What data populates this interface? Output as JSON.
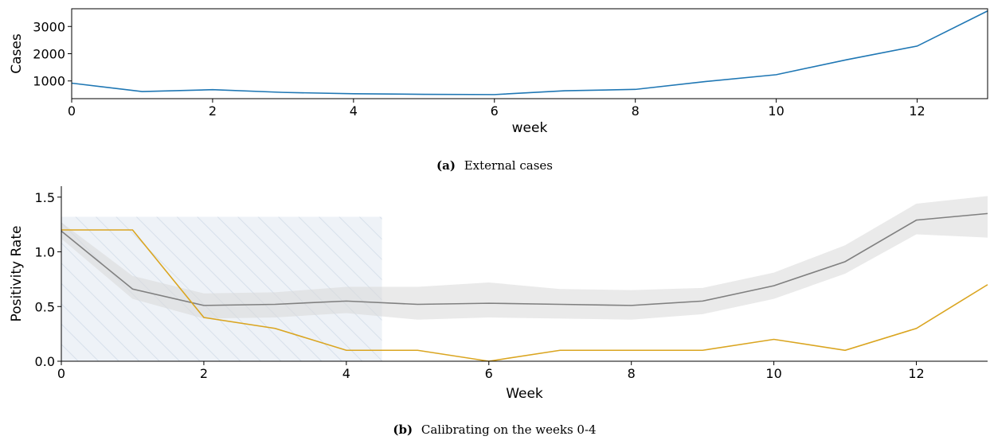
{
  "chart_data": [
    {
      "type": "line",
      "title": "",
      "xlabel": "week",
      "ylabel": "Cases",
      "xlim": [
        0,
        13
      ],
      "ylim": [
        350,
        3650
      ],
      "x_ticks": [
        0,
        2,
        4,
        6,
        8,
        10,
        12
      ],
      "y_ticks": [
        1000,
        2000,
        3000
      ],
      "grid": false,
      "series": [
        {
          "color": "#1f77b4",
          "x": [
            0,
            1,
            2,
            3,
            4,
            5,
            6,
            7,
            8,
            9,
            10,
            11,
            12,
            13
          ],
          "y": [
            920,
            610,
            680,
            580,
            530,
            510,
            500,
            640,
            690,
            980,
            1230,
            1780,
            2280,
            3570
          ]
        }
      ],
      "caption": {
        "label": "(a)",
        "text": "External cases"
      }
    },
    {
      "type": "line",
      "title": "",
      "xlabel": "Week",
      "ylabel": "Positivity Rate",
      "xlim": [
        0,
        13
      ],
      "ylim": [
        0,
        1.6
      ],
      "x_ticks": [
        0,
        2,
        4,
        6,
        8,
        10,
        12
      ],
      "y_ticks": [
        0.0,
        0.5,
        1.0,
        1.5
      ],
      "y_tick_labels": [
        "0.0",
        "0.5",
        "1.0",
        "1.5"
      ],
      "grid": false,
      "calibration_region": {
        "x_start": 0,
        "x_end": 4.5,
        "y_top": 1.32,
        "fill": "#dde6f0",
        "hatch": "#c8d6e6"
      },
      "series": [
        {
          "color": "#808080",
          "band_color": "#d9d9d9",
          "x": [
            0,
            1,
            2,
            3,
            4,
            5,
            6,
            7,
            8,
            9,
            10,
            11,
            12,
            13
          ],
          "y": [
            1.19,
            0.66,
            0.51,
            0.52,
            0.55,
            0.52,
            0.53,
            0.52,
            0.51,
            0.55,
            0.69,
            0.91,
            1.29,
            1.35
          ],
          "lower": [
            1.12,
            0.57,
            0.39,
            0.4,
            0.44,
            0.38,
            0.4,
            0.39,
            0.38,
            0.43,
            0.57,
            0.8,
            1.16,
            1.13
          ],
          "upper": [
            1.27,
            0.78,
            0.62,
            0.63,
            0.68,
            0.68,
            0.72,
            0.66,
            0.65,
            0.67,
            0.81,
            1.06,
            1.44,
            1.51
          ]
        },
        {
          "color": "#daa520",
          "x": [
            0,
            1,
            2,
            3,
            4,
            5,
            6,
            7,
            8,
            9,
            10,
            11,
            12,
            13
          ],
          "y": [
            1.2,
            1.2,
            0.4,
            0.3,
            0.1,
            0.1,
            0.0,
            0.1,
            0.1,
            0.1,
            0.2,
            0.1,
            0.3,
            0.7
          ]
        }
      ],
      "caption": {
        "label": "(b)",
        "text": "Calibrating on the weeks 0-4"
      }
    }
  ]
}
